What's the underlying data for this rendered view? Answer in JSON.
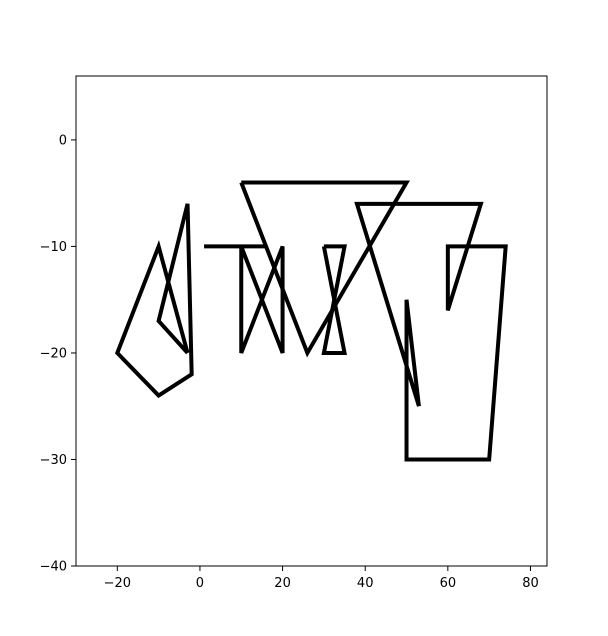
{
  "chart_data": {
    "type": "line",
    "title": "",
    "xlabel": "",
    "ylabel": "",
    "xlim": [
      -30,
      84
    ],
    "ylim": [
      -40,
      6
    ],
    "xticks": [
      -20,
      0,
      20,
      40,
      60,
      80
    ],
    "yticks": [
      0,
      -10,
      -20,
      -30,
      -40
    ],
    "grid": false,
    "legend": "none",
    "line_color": "#000000",
    "series": [
      {
        "points": [
          [
            -3,
            -20
          ],
          [
            -10,
            -10
          ],
          [
            -20,
            -20
          ],
          [
            -10,
            -24
          ],
          [
            -2,
            -22
          ],
          [
            -3,
            -6
          ],
          [
            -10,
            -17
          ],
          [
            -3,
            -20
          ]
        ]
      },
      {
        "points": [
          [
            1,
            -10
          ],
          [
            16,
            -10
          ]
        ]
      },
      {
        "points": [
          [
            10,
            -10
          ],
          [
            20,
            -20
          ],
          [
            20,
            -10
          ],
          [
            10,
            -20
          ],
          [
            10,
            -10
          ]
        ]
      },
      {
        "points": [
          [
            10,
            -4
          ],
          [
            26,
            -20
          ],
          [
            50,
            -4
          ],
          [
            10,
            -4
          ]
        ]
      },
      {
        "points": [
          [
            20,
            -4
          ],
          [
            40,
            -4
          ]
        ]
      },
      {
        "points": [
          [
            30,
            -10
          ],
          [
            35,
            -10
          ],
          [
            30,
            -20
          ],
          [
            35,
            -20
          ],
          [
            30,
            -10
          ]
        ]
      },
      {
        "points": [
          [
            53,
            -25
          ],
          [
            38,
            -6
          ],
          [
            68,
            -6
          ],
          [
            60,
            -16
          ],
          [
            60,
            -10
          ],
          [
            74,
            -10
          ],
          [
            70,
            -30
          ],
          [
            50,
            -30
          ],
          [
            50,
            -15
          ],
          [
            53,
            -25
          ]
        ]
      }
    ]
  }
}
